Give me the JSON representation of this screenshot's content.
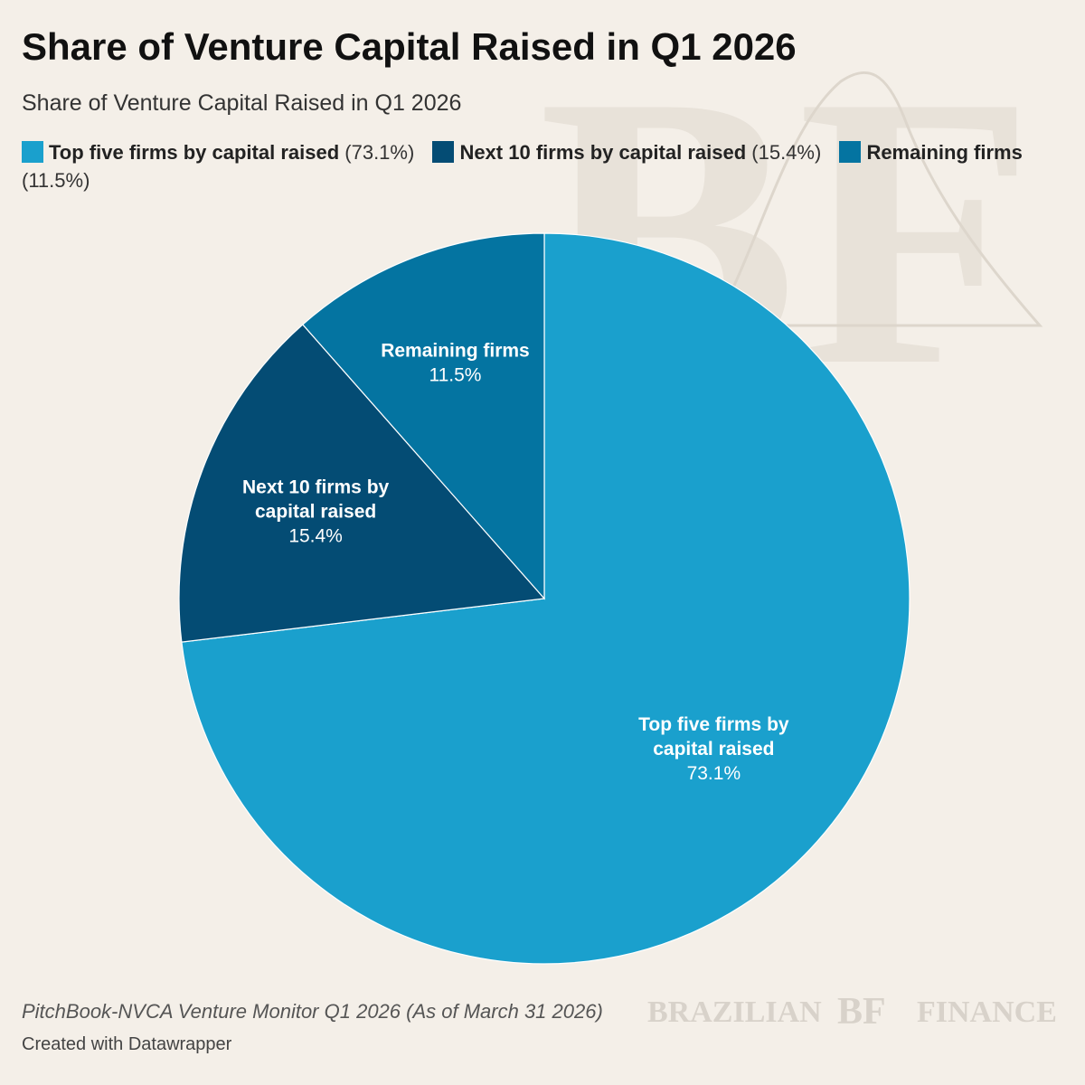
{
  "title": "Share of Venture Capital Raised in Q1 2026",
  "subtitle": "Share of Venture Capital Raised in Q1 2026",
  "legend": [
    {
      "label": "Top five firms by capital raised",
      "value": "(73.1%)",
      "color": "#1aa0cd"
    },
    {
      "label": "Next 10 firms by capital raised",
      "value": "(15.4%)",
      "color": "#044c74"
    },
    {
      "label": "Remaining firms",
      "value": "(11.5%)",
      "color": "#0474a1"
    }
  ],
  "chart_data": {
    "type": "pie",
    "series": [
      {
        "name": "Top five firms by capital raised",
        "value": 73.1,
        "label_lines": [
          "Top five firms by",
          "capital raised"
        ],
        "value_label": "73.1%",
        "color": "#1aa0cd"
      },
      {
        "name": "Next 10 firms by capital raised",
        "value": 15.4,
        "label_lines": [
          "Next 10 firms by",
          "capital raised"
        ],
        "value_label": "15.4%",
        "color": "#044c74"
      },
      {
        "name": "Remaining firms",
        "value": 11.5,
        "label_lines": [
          "Remaining firms"
        ],
        "value_label": "11.5%",
        "color": "#0474a1"
      }
    ],
    "start_angle": "12 o'clock",
    "direction": "clockwise",
    "legend_position": "top"
  },
  "footer": {
    "source": "PitchBook-NVCA Venture Monitor Q1 2026 (As of March 31 2026)",
    "credit": "Created with Datawrapper"
  },
  "brand": {
    "left_word": "BRAZILIAN",
    "monogram": "BF",
    "right_word": "FINANCE",
    "color": "#d8d2ca"
  },
  "watermark": {
    "monogram": "BF",
    "color": "#e6e0d7"
  }
}
